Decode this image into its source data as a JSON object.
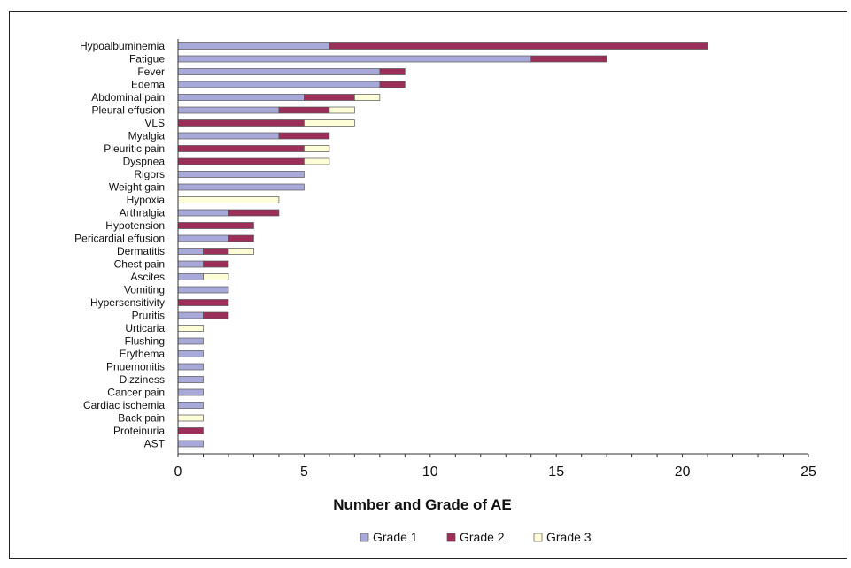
{
  "chart_data": {
    "type": "bar",
    "orientation": "horizontal",
    "stacked": true,
    "title": "",
    "xlabel": "Number and Grade of AE",
    "ylabel": "",
    "xlim": [
      0,
      25
    ],
    "xticks": [
      0,
      5,
      10,
      15,
      20,
      25
    ],
    "grid": false,
    "legend_position": "bottom",
    "categories": [
      "Hypoalbuminemia",
      "Fatigue",
      "Fever",
      "Edema",
      "Abdominal pain",
      "Pleural effusion",
      "VLS",
      "Myalgia",
      "Pleuritic pain",
      "Dyspnea",
      "Rigors",
      "Weight gain",
      "Hypoxia",
      "Arthralgia",
      "Hypotension",
      "Pericardial effusion",
      "Dermatitis",
      "Chest pain",
      "Ascites",
      "Vomiting",
      "Hypersensitivity",
      "Pruritis",
      "Urticaria",
      "Flushing",
      "Erythema",
      "Pnuemonitis",
      "Dizziness",
      "Cancer pain",
      "Cardiac ischemia",
      "Back pain",
      "Proteinuria",
      "AST"
    ],
    "series": [
      {
        "name": "Grade 1",
        "color": "#a9a9d9",
        "values": [
          6,
          14,
          8,
          8,
          5,
          4,
          0,
          4,
          0,
          0,
          5,
          5,
          0,
          2,
          0,
          2,
          1,
          1,
          1,
          2,
          0,
          1,
          0,
          1,
          1,
          1,
          1,
          1,
          1,
          0,
          0,
          1
        ]
      },
      {
        "name": "Grade 2",
        "color": "#9b2f5a",
        "values": [
          15,
          3,
          1,
          1,
          2,
          2,
          5,
          2,
          5,
          5,
          0,
          0,
          0,
          2,
          3,
          1,
          1,
          1,
          0,
          0,
          2,
          1,
          0,
          0,
          0,
          0,
          0,
          0,
          0,
          0,
          1,
          0
        ]
      },
      {
        "name": "Grade 3",
        "color": "#fdfdd8",
        "values": [
          0,
          0,
          0,
          0,
          1,
          1,
          2,
          0,
          1,
          1,
          0,
          0,
          4,
          0,
          0,
          0,
          1,
          0,
          1,
          0,
          0,
          0,
          1,
          0,
          0,
          0,
          0,
          0,
          0,
          1,
          0,
          0
        ]
      }
    ]
  }
}
